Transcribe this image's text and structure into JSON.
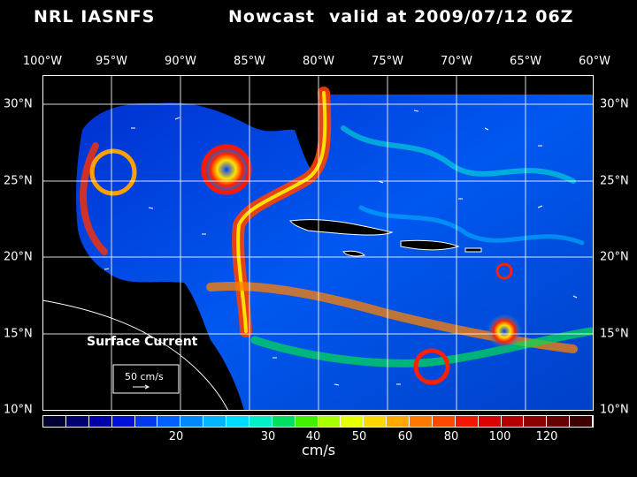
{
  "header": {
    "source": "NRL IASNFS",
    "product": "Nowcast",
    "valid_text": "valid at 2009/07/12 06Z"
  },
  "map": {
    "lon_labels": [
      "100°W",
      "95°W",
      "90°W",
      "85°W",
      "80°W",
      "75°W",
      "70°W",
      "65°W",
      "60°W"
    ],
    "lat_labels": [
      "30°N",
      "25°N",
      "20°N",
      "15°N",
      "10°N"
    ],
    "legend_title": "Surface Current",
    "scale_vector_label": "50 cm/s",
    "colors": {
      "land": "#000000",
      "coastline": "#ffffff",
      "grid": "#ffffff"
    }
  },
  "colorbar": {
    "unit": "cm/s",
    "tick_labels": [
      "20",
      "30",
      "40",
      "50",
      "60",
      "80",
      "100",
      "120"
    ],
    "colors": [
      "#000033",
      "#00006e",
      "#0000a8",
      "#0010d8",
      "#0038f0",
      "#0060ff",
      "#0088ff",
      "#00b4ff",
      "#00dcff",
      "#00f0c8",
      "#00e060",
      "#40f000",
      "#a8ff00",
      "#e8ff00",
      "#ffd800",
      "#ffa800",
      "#ff7800",
      "#ff4800",
      "#f01800",
      "#d80000",
      "#b40000",
      "#8c0000",
      "#640000",
      "#3c0000"
    ]
  }
}
